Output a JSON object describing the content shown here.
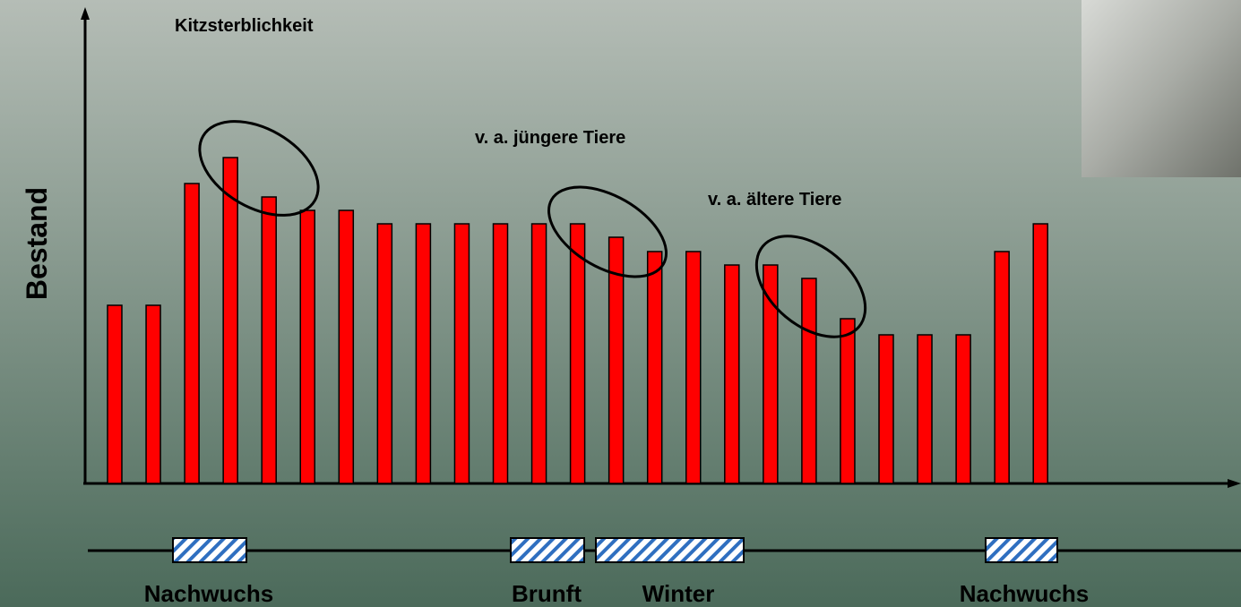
{
  "chart_data": {
    "type": "bar",
    "title": "Kitzsterblichkeit",
    "y_label": "Bestand",
    "annotations": [
      "v. a. jüngere Tiere",
      "v. a. ältere Tiere"
    ],
    "values": [
      199,
      199,
      335,
      364,
      320,
      305,
      305,
      290,
      290,
      290,
      290,
      290,
      290,
      275,
      259,
      259,
      244,
      244,
      229,
      184,
      166,
      166,
      166,
      259,
      290
    ],
    "color": "#ff0000",
    "ylim": [
      0,
      528
    ],
    "seasons": [
      "Nachwuchs",
      "Brunft",
      "Winter",
      "Nachwuchs"
    ]
  }
}
